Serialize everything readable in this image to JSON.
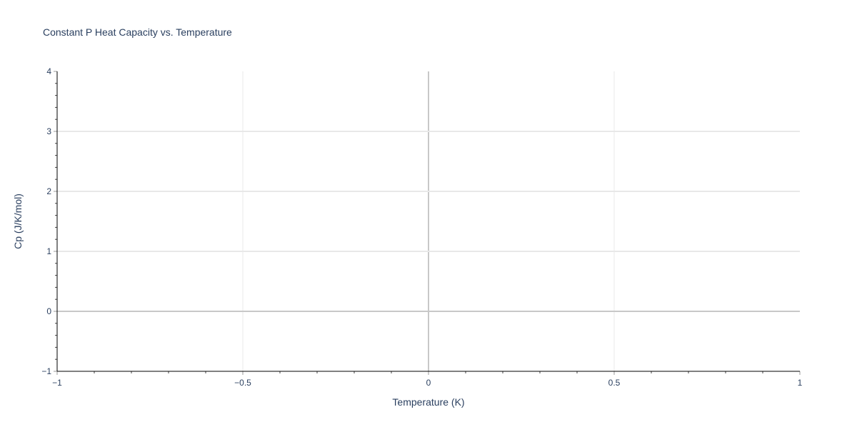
{
  "chart_data": {
    "type": "scatter",
    "title": "Constant P Heat Capacity vs. Temperature",
    "xlabel": "Temperature (K)",
    "ylabel": "Cp (J/K/mol)",
    "xlim": [
      -1,
      1
    ],
    "ylim": [
      -1,
      4
    ],
    "x_ticks": [
      -1,
      -0.5,
      0,
      0.5,
      1
    ],
    "x_tick_labels": [
      "−1",
      "−0.5",
      "0",
      "0.5",
      "1"
    ],
    "y_ticks": [
      -1,
      0,
      1,
      2,
      3,
      4
    ],
    "y_tick_labels": [
      "−1",
      "0",
      "1",
      "2",
      "3",
      "4"
    ],
    "grid": true,
    "series": [],
    "colors": {
      "text": "#2a3f5f",
      "grid": "#e8e8e8",
      "zeroline": "#c8c8c8",
      "axis": "#000000"
    }
  }
}
